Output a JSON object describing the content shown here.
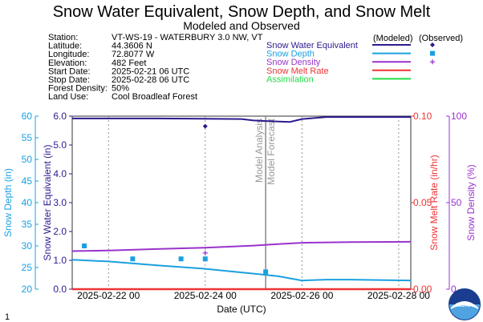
{
  "page": {
    "title": "Snow Water Equivalent, Snow Depth, and Snow Melt",
    "subtitle": "Modeled and Observed",
    "page_number": "1"
  },
  "station_info": [
    {
      "label": "Station:",
      "value": "VT-WS-19 - WATERBURY 3.0 NW, VT"
    },
    {
      "label": "Latitude:",
      "value": "44.3606 N"
    },
    {
      "label": "Longitude:",
      "value": "72.8077 W"
    },
    {
      "label": "Elevation:",
      "value": "482 Feet"
    },
    {
      "label": "Start Date:",
      "value": "2025-02-21 06 UTC"
    },
    {
      "label": "Stop Date:",
      "value": "2025-02-28 06 UTC"
    },
    {
      "label": "Forest Density:",
      "value": "50%"
    },
    {
      "label": "Land Use:",
      "value": "Cool Broadleaf Forest"
    }
  ],
  "legend": {
    "modeled_header": "(Modeled)",
    "observed_header": "(Observed)",
    "entries": [
      {
        "name": "Snow Water Equivalent",
        "color": "#2e1a8e",
        "observed_marker": "diamond"
      },
      {
        "name": "Snow Depth",
        "color": "#1aa0e0",
        "observed_marker": "square"
      },
      {
        "name": "Snow Density",
        "color": "#9933cc",
        "observed_marker": "plus"
      },
      {
        "name": "Snow Melt Rate",
        "color": "#ee3333",
        "observed_marker": ""
      },
      {
        "name": "Assimilation",
        "color": "#22dd44",
        "observed_marker": ""
      }
    ]
  },
  "colors": {
    "swe": "#2e1a8e",
    "depth": "#1aa0e0",
    "density": "#9933cc",
    "melt": "#ee3333",
    "assimilation": "#22dd44",
    "vline": "#999999"
  },
  "chart_data": {
    "type": "line",
    "x_axis": {
      "label": "Date (UTC)",
      "range": [
        "2025-02-21 06",
        "2025-02-28 06"
      ],
      "tick_labels": [
        "2025-02-22 00",
        "2025-02-24 00",
        "2025-02-26 00",
        "2025-02-28 00"
      ],
      "tick_dates": [
        "2025-02-22 00",
        "2025-02-24 00",
        "2025-02-26 00",
        "2025-02-28 00"
      ]
    },
    "axes": {
      "swe": {
        "label": "Snow Water Equivalent (in)",
        "range": [
          0.0,
          6.0
        ],
        "ticks": [
          "0.0",
          "1.0",
          "2.0",
          "3.0",
          "4.0",
          "5.0",
          "6.0"
        ]
      },
      "depth": {
        "label": "Snow Depth (in)",
        "range": [
          20,
          60
        ],
        "ticks": [
          "20",
          "25",
          "30",
          "35",
          "40",
          "45",
          "50",
          "55",
          "60"
        ]
      },
      "melt": {
        "label": "Snow Melt Rate (in/hr)",
        "range": [
          0.0,
          0.1
        ],
        "ticks": [
          "0.00",
          "0.05",
          "0.10"
        ]
      },
      "density": {
        "label": "Snow Density (%)",
        "range": [
          0,
          100
        ],
        "ticks": [
          "0",
          "50",
          "100"
        ]
      }
    },
    "annotations": [
      "Model Analysis",
      "Model Forecast"
    ],
    "annotation_date": "2025-02-25 06",
    "series": [
      {
        "name": "Snow Water Equivalent",
        "kind": "modeled",
        "axis": "swe",
        "points": [
          [
            "2025-02-21 06",
            5.92
          ],
          [
            "2025-02-22 00",
            5.92
          ],
          [
            "2025-02-23 00",
            5.92
          ],
          [
            "2025-02-24 00",
            5.91
          ],
          [
            "2025-02-24 18",
            5.9
          ],
          [
            "2025-02-25 00",
            5.85
          ],
          [
            "2025-02-25 06",
            5.83
          ],
          [
            "2025-02-25 18",
            5.8
          ],
          [
            "2025-02-26 00",
            5.9
          ],
          [
            "2025-02-26 12",
            5.97
          ],
          [
            "2025-02-27 00",
            5.97
          ],
          [
            "2025-02-28 06",
            5.97
          ]
        ]
      },
      {
        "name": "Snow Depth",
        "kind": "modeled",
        "axis": "depth",
        "points": [
          [
            "2025-02-21 06",
            26.8
          ],
          [
            "2025-02-22 00",
            26.4
          ],
          [
            "2025-02-23 00",
            25.5
          ],
          [
            "2025-02-24 00",
            24.7
          ],
          [
            "2025-02-25 00",
            23.6
          ],
          [
            "2025-02-25 12",
            23.0
          ],
          [
            "2025-02-26 00",
            22.0
          ],
          [
            "2025-02-26 12",
            22.2
          ],
          [
            "2025-02-27 00",
            22.2
          ],
          [
            "2025-02-28 06",
            22.0
          ]
        ]
      },
      {
        "name": "Snow Density",
        "kind": "modeled",
        "axis": "density",
        "points": [
          [
            "2025-02-21 06",
            22.0
          ],
          [
            "2025-02-22 00",
            22.3
          ],
          [
            "2025-02-23 00",
            23.2
          ],
          [
            "2025-02-24 00",
            24.0
          ],
          [
            "2025-02-25 00",
            25.2
          ],
          [
            "2025-02-25 12",
            26.0
          ],
          [
            "2025-02-26 00",
            26.8
          ],
          [
            "2025-02-27 00",
            27.2
          ],
          [
            "2025-02-28 06",
            27.4
          ]
        ]
      },
      {
        "name": "Snow Melt Rate",
        "kind": "modeled",
        "axis": "melt",
        "points": [
          [
            "2025-02-21 06",
            0.0
          ],
          [
            "2025-02-28 06",
            0.0
          ]
        ]
      },
      {
        "name": "Snow Water Equivalent",
        "kind": "observed",
        "axis": "swe",
        "points": [
          [
            "2025-02-24 00",
            5.65
          ]
        ]
      },
      {
        "name": "Snow Depth",
        "kind": "observed",
        "axis": "depth",
        "points": [
          [
            "2025-02-21 12",
            30
          ],
          [
            "2025-02-22 12",
            27
          ],
          [
            "2025-02-23 12",
            27
          ],
          [
            "2025-02-24 00",
            27
          ],
          [
            "2025-02-25 06",
            24
          ]
        ]
      },
      {
        "name": "Snow Density",
        "kind": "observed",
        "axis": "density",
        "points": [
          [
            "2025-02-24 00",
            20.9
          ]
        ]
      }
    ]
  }
}
